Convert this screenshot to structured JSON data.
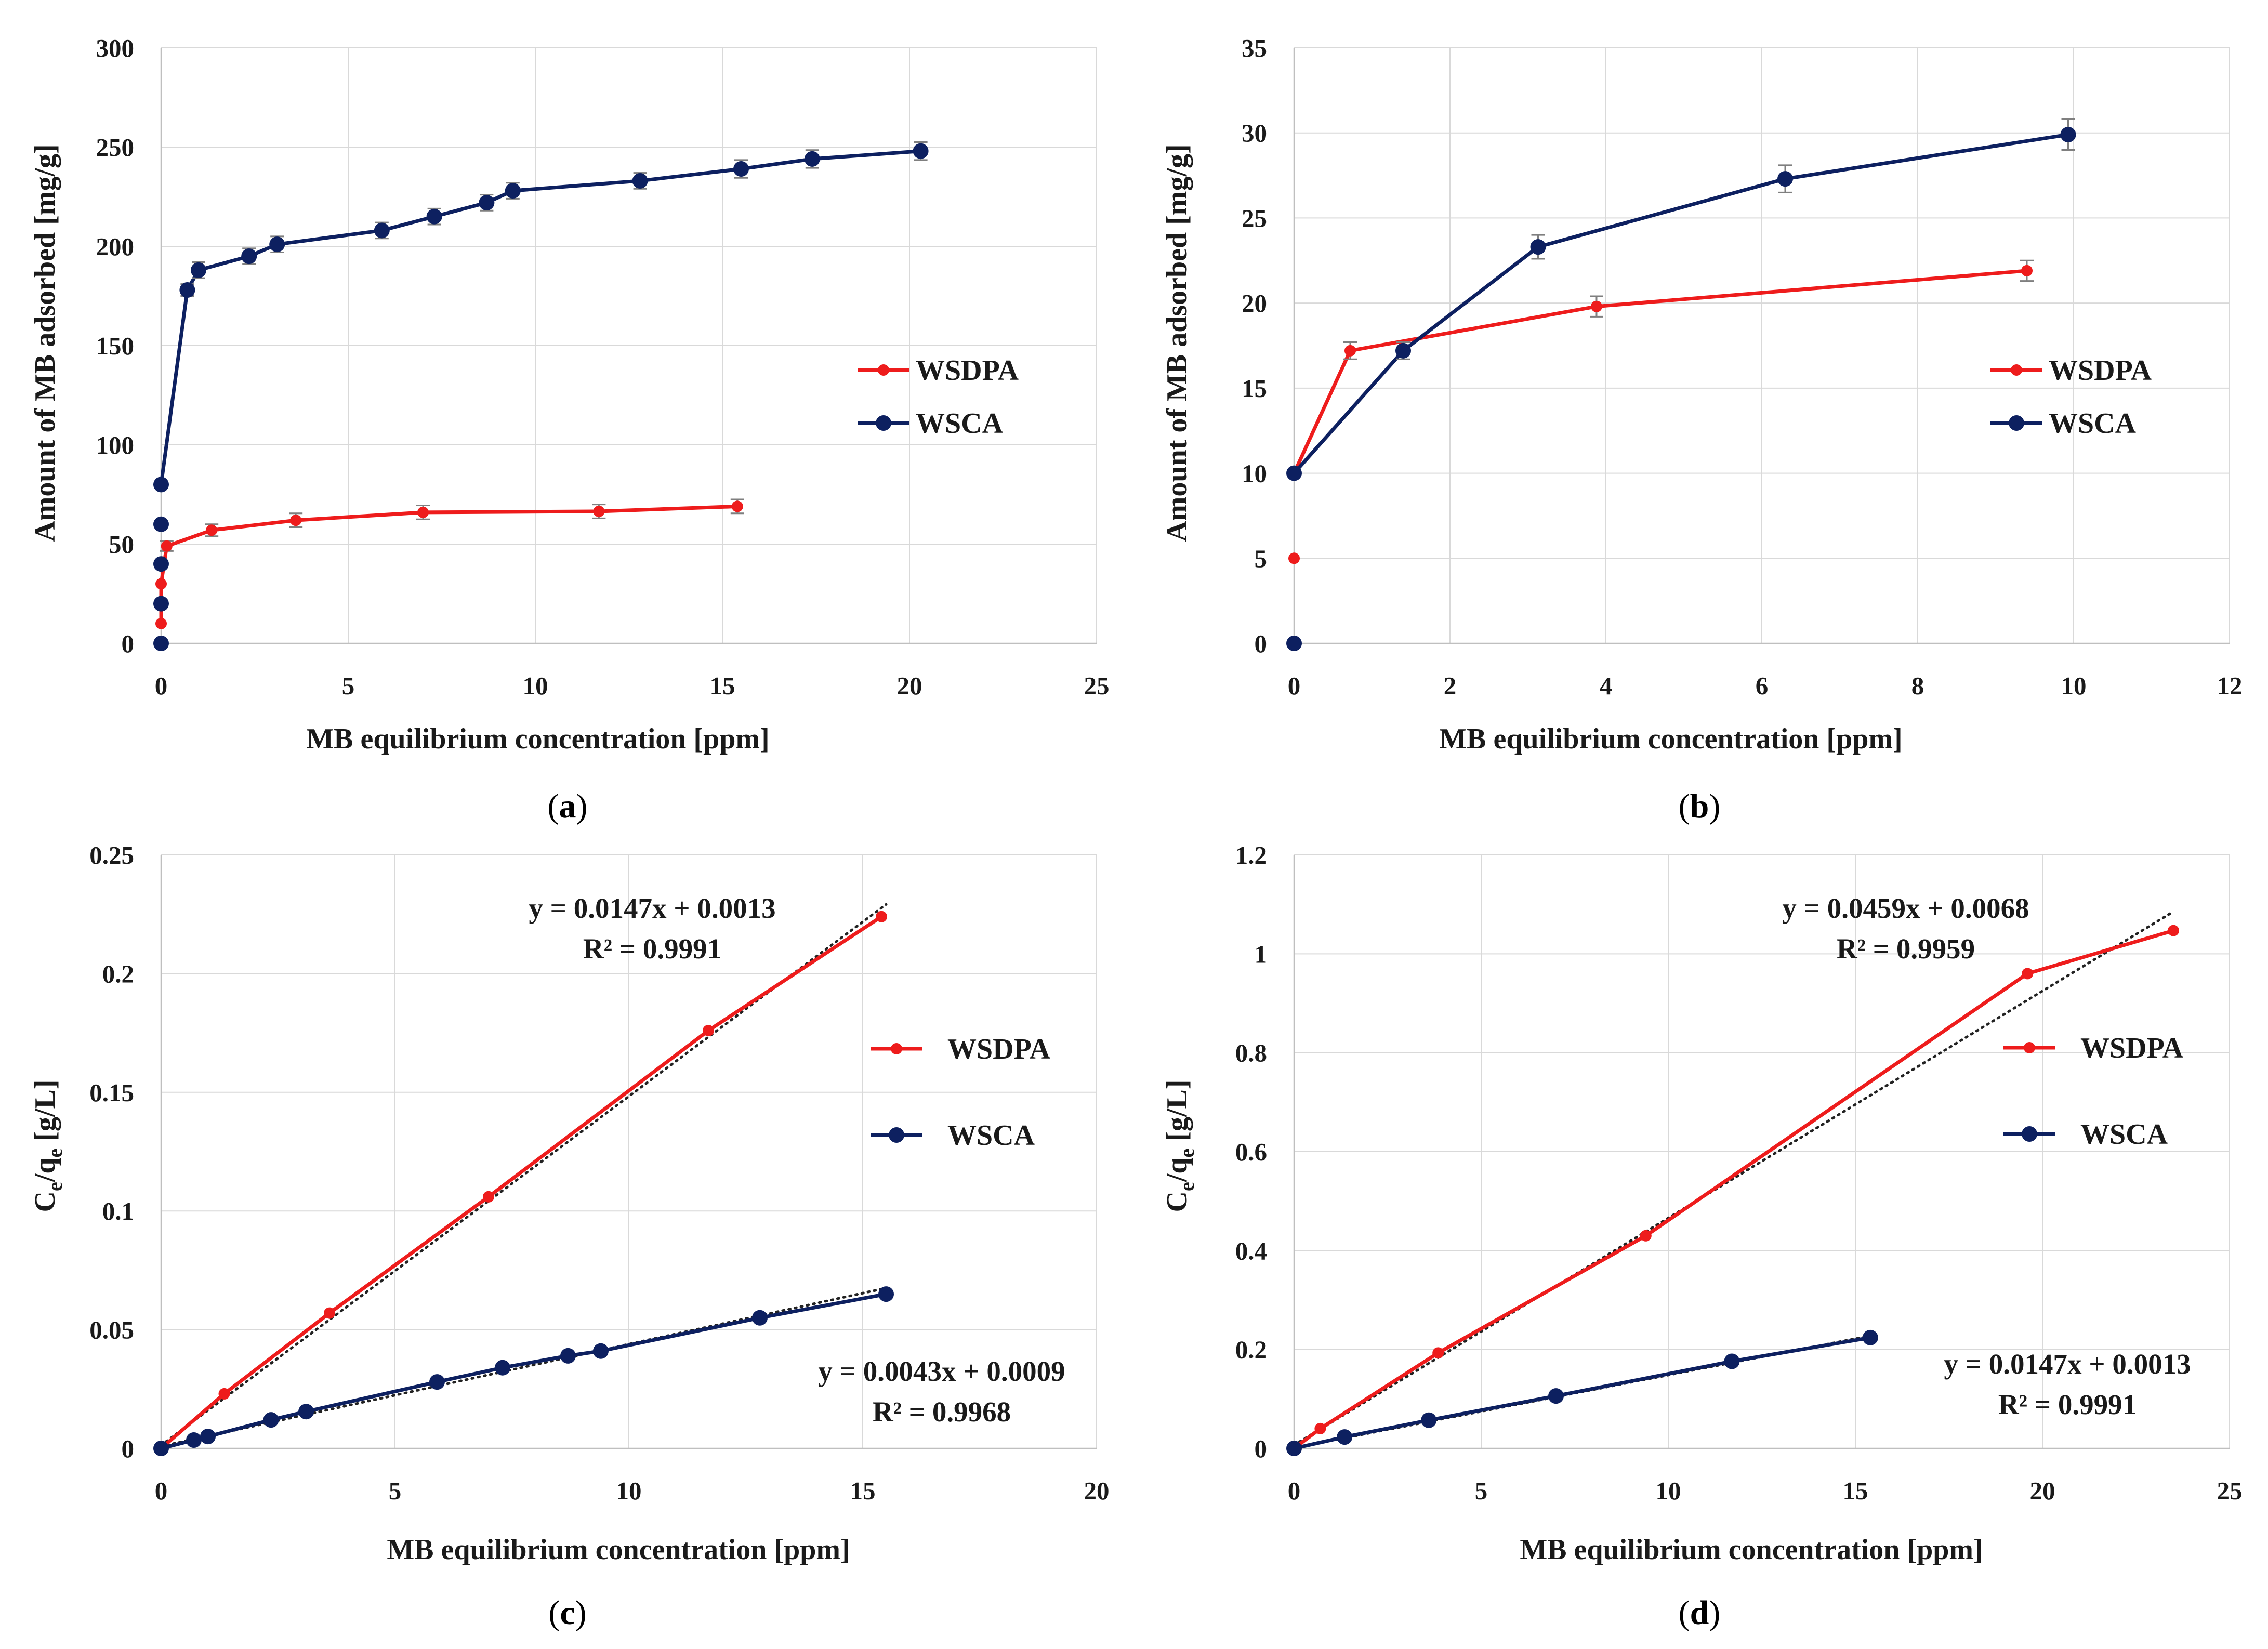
{
  "colors": {
    "wsdpa": "#ee1c1c",
    "wsca": "#0d2060",
    "trend": "#222222",
    "grid": "#d9d9d9",
    "errorbar": "#7f7f7f"
  },
  "panel_labels": {
    "a": "a",
    "b": "b",
    "c": "c",
    "d": "d"
  },
  "chart_data": [
    {
      "id": "a",
      "type": "line",
      "xlabel": "MB equilibrium  concentration [ppm]",
      "ylabel": "Amount of MB adsorbed [mg/g]",
      "xlim": [
        0,
        25
      ],
      "ylim": [
        0,
        300
      ],
      "xticks": [
        0,
        5,
        10,
        15,
        20,
        25
      ],
      "yticks": [
        0,
        50,
        100,
        150,
        200,
        250,
        300
      ],
      "legend": [
        "WSDPA",
        "WSCA"
      ],
      "series": [
        {
          "name": "WSDPA",
          "color_key": "wsdpa",
          "x": [
            0,
            0,
            0.15,
            1.35,
            3.6,
            7.0,
            11.7,
            15.4
          ],
          "y": [
            10,
            30,
            49,
            57,
            62,
            66,
            66.5,
            69
          ],
          "err": [
            0,
            0,
            2.5,
            3,
            3.5,
            3.5,
            3.5,
            3.5
          ],
          "err_start": 2
        },
        {
          "name": "WSCA",
          "color_key": "wsca",
          "x": [
            0,
            0,
            0,
            0,
            0,
            0.7,
            1.0,
            2.35,
            3.1,
            5.9,
            7.3,
            8.7,
            9.4,
            12.8,
            15.5,
            17.4,
            20.3
          ],
          "y": [
            0,
            20,
            40,
            60,
            80,
            178,
            188,
            195,
            201,
            208,
            215,
            222,
            228,
            233,
            239,
            244,
            248
          ],
          "err": [
            0,
            0,
            0,
            0,
            0,
            3,
            4,
            4,
            4,
            4,
            4,
            4,
            4,
            4,
            4.5,
            4.5,
            4.5
          ],
          "err_start": 5,
          "line_start": 4
        }
      ]
    },
    {
      "id": "b",
      "type": "line",
      "xlabel": "MB equilibrium  concentration [ppm]",
      "ylabel": "Amount of MB adsorbed [mg/g]",
      "xlim": [
        0,
        12
      ],
      "ylim": [
        0,
        35
      ],
      "xticks": [
        0,
        2,
        4,
        6,
        8,
        10,
        12
      ],
      "yticks": [
        0,
        5,
        10,
        15,
        20,
        25,
        30,
        35
      ],
      "legend": [
        "WSDPA",
        "WSCA"
      ],
      "series": [
        {
          "name": "WSDPA",
          "color_key": "wsdpa",
          "x": [
            0,
            0,
            0.72,
            3.88,
            9.4
          ],
          "y": [
            5,
            10,
            17.2,
            19.8,
            21.9
          ],
          "err": [
            0,
            0,
            0.5,
            0.6,
            0.6
          ],
          "err_start": 2,
          "line_start": 1
        },
        {
          "name": "WSCA",
          "color_key": "wsca",
          "x": [
            0,
            0,
            1.4,
            3.13,
            6.3,
            9.93
          ],
          "y": [
            0,
            10,
            17.2,
            23.3,
            27.3,
            29.9
          ],
          "err": [
            0,
            0,
            0.5,
            0.7,
            0.8,
            0.9
          ],
          "err_start": 2,
          "line_start": 1
        }
      ]
    },
    {
      "id": "c",
      "type": "line",
      "xlabel": "MB equilibrium  concentration [ppm]",
      "ylabel_main": "C",
      "ylabel_sub1": "e",
      "ylabel_mid": "/q",
      "ylabel_sub2": "e",
      "ylabel_unit": " [g/L]",
      "xlim": [
        0,
        20
      ],
      "ylim": [
        0,
        0.25
      ],
      "xticks": [
        0,
        5,
        10,
        15,
        20
      ],
      "yticks": [
        0,
        0.05,
        0.1,
        0.15,
        0.2,
        0.25
      ],
      "ytick_labels": [
        "0",
        "0.05",
        "0.1",
        "0.15",
        "0.2",
        "0.25"
      ],
      "legend": [
        "WSDPA",
        "WSCA"
      ],
      "series": [
        {
          "name": "WSDPA",
          "color_key": "wsdpa",
          "x": [
            0,
            1.35,
            3.6,
            7.0,
            11.7,
            15.4
          ],
          "y": [
            0,
            0.023,
            0.057,
            0.106,
            0.176,
            0.224
          ]
        },
        {
          "name": "WSCA",
          "color_key": "wsca",
          "x": [
            0,
            0.7,
            1.0,
            2.35,
            3.1,
            5.9,
            7.3,
            8.7,
            9.4,
            12.8,
            15.5
          ],
          "y": [
            0,
            0.0035,
            0.005,
            0.012,
            0.0155,
            0.028,
            0.034,
            0.039,
            0.041,
            0.055,
            0.065
          ]
        }
      ],
      "trendlines": [
        {
          "slope": 0.0147,
          "intercept": 0.0013,
          "x0": 0,
          "x1": 15.5,
          "equation": "y = 0.0147x + 0.0013",
          "r2": "R² = 0.9991"
        },
        {
          "slope": 0.0043,
          "intercept": 0.0009,
          "x0": 0,
          "x1": 15.5,
          "equation": "y = 0.0043x + 0.0009",
          "r2": "R² = 0.9968"
        }
      ]
    },
    {
      "id": "d",
      "type": "line",
      "xlabel": "MB equilibrium  concentration [ppm]",
      "ylabel_main": "C",
      "ylabel_sub1": "e",
      "ylabel_mid": "/q",
      "ylabel_sub2": "e",
      "ylabel_unit": " [g/L]",
      "xlim": [
        0,
        25
      ],
      "ylim": [
        0,
        1.2
      ],
      "xticks": [
        0,
        5,
        10,
        15,
        20,
        25
      ],
      "yticks": [
        0,
        0.2,
        0.4,
        0.6,
        0.8,
        1.0,
        1.2
      ],
      "ytick_labels": [
        "0",
        "0.2",
        "0.4",
        "0.6",
        "0.8",
        "1",
        "1.2"
      ],
      "legend": [
        "WSDPA",
        "WSCA"
      ],
      "series": [
        {
          "name": "WSDPA",
          "color_key": "wsdpa",
          "x": [
            0,
            0.7,
            3.85,
            9.4,
            19.6,
            23.5
          ],
          "y": [
            0,
            0.04,
            0.193,
            0.43,
            0.96,
            1.047
          ]
        },
        {
          "name": "WSCA",
          "color_key": "wsca",
          "x": [
            0,
            1.35,
            3.6,
            7.0,
            11.7,
            15.4
          ],
          "y": [
            0,
            0.023,
            0.057,
            0.106,
            0.176,
            0.224
          ]
        }
      ],
      "trendlines": [
        {
          "slope": 0.0459,
          "intercept": 0.0068,
          "x0": 0,
          "x1": 23.5,
          "equation": "y = 0.0459x + 0.0068",
          "r2": "R² = 0.9959"
        },
        {
          "slope": 0.0147,
          "intercept": 0.0013,
          "x0": 0,
          "x1": 15.4,
          "equation": "y = 0.0147x + 0.0013",
          "r2": "R² = 0.9991"
        }
      ]
    }
  ]
}
